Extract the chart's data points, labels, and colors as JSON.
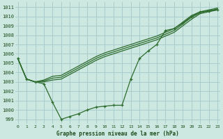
{
  "title": "Graphe pression niveau de la mer (hPa)",
  "background_color": "#cce8e0",
  "grid_color": "#aacccc",
  "line_color": "#2d6b2d",
  "text_color": "#1a4a1a",
  "xlim": [
    -0.3,
    23.3
  ],
  "ylim": [
    998.5,
    1011.5
  ],
  "yticks": [
    999,
    1000,
    1001,
    1002,
    1003,
    1004,
    1005,
    1006,
    1007,
    1008,
    1009,
    1010,
    1011
  ],
  "xticks": [
    0,
    1,
    2,
    3,
    4,
    5,
    6,
    7,
    8,
    9,
    10,
    11,
    12,
    13,
    14,
    15,
    16,
    17,
    18,
    19,
    20,
    21,
    22,
    23
  ],
  "series1": [
    1005.5,
    1003.3,
    1003.0,
    1002.8,
    1000.8,
    999.0,
    999.3,
    999.6,
    1000.0,
    1000.3,
    1000.4,
    1000.5,
    1000.5,
    1003.3,
    1005.5,
    1006.3,
    1007.0,
    1008.5,
    1008.7,
    1009.3,
    1010.0,
    1010.5,
    1010.6,
    1010.7
  ],
  "series2": [
    1005.5,
    1003.3,
    1003.0,
    1003.0,
    1003.2,
    1003.3,
    1003.8,
    1004.3,
    1004.8,
    1005.3,
    1005.7,
    1006.0,
    1006.3,
    1006.6,
    1006.9,
    1007.2,
    1007.5,
    1007.9,
    1008.3,
    1009.0,
    1009.7,
    1010.3,
    1010.5,
    1010.7
  ],
  "series3": [
    1005.5,
    1003.3,
    1003.0,
    1003.1,
    1003.4,
    1003.5,
    1004.0,
    1004.5,
    1005.0,
    1005.5,
    1005.9,
    1006.2,
    1006.5,
    1006.8,
    1007.1,
    1007.4,
    1007.7,
    1008.1,
    1008.5,
    1009.2,
    1009.9,
    1010.4,
    1010.6,
    1010.8
  ],
  "series4": [
    1005.5,
    1003.3,
    1003.0,
    1003.2,
    1003.6,
    1003.7,
    1004.2,
    1004.7,
    1005.2,
    1005.7,
    1006.1,
    1006.4,
    1006.7,
    1007.0,
    1007.3,
    1007.6,
    1007.9,
    1008.3,
    1008.7,
    1009.4,
    1010.1,
    1010.5,
    1010.7,
    1010.9
  ]
}
